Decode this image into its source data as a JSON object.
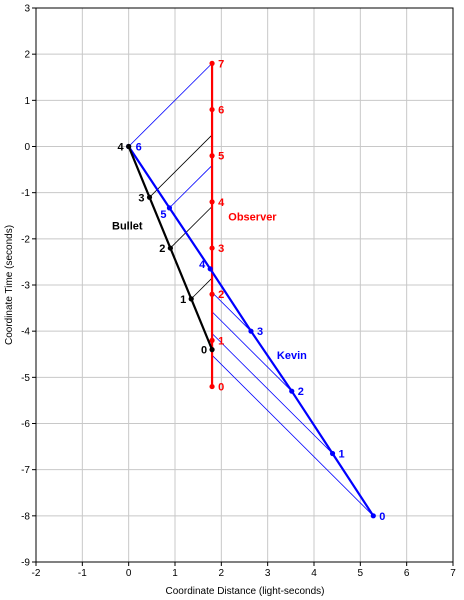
{
  "chart_data": {
    "type": "line",
    "xlabel": "Coordinate Distance (light-seconds)",
    "ylabel": "Coordinate Time (seconds)",
    "xlim": [
      -2,
      7
    ],
    "ylim": [
      -9,
      3
    ],
    "xticks": [
      "-2",
      "-1",
      "0",
      "1",
      "2",
      "3",
      "4",
      "5",
      "6",
      "7"
    ],
    "yticks": [
      "3",
      "2",
      "1",
      "0",
      "-1",
      "-2",
      "-3",
      "-4",
      "-5",
      "-6",
      "-7",
      "-8",
      "-9"
    ],
    "grid": true,
    "series": [
      {
        "name": "Observer",
        "color": "#ff0000",
        "points": [
          {
            "x": 1.8,
            "y": -5.2,
            "label": "0"
          },
          {
            "x": 1.8,
            "y": -4.2,
            "label": "1"
          },
          {
            "x": 1.8,
            "y": -3.2,
            "label": "2"
          },
          {
            "x": 1.8,
            "y": -2.2,
            "label": "3"
          },
          {
            "x": 1.8,
            "y": -1.2,
            "label": "4"
          },
          {
            "x": 1.8,
            "y": -0.2,
            "label": "5"
          },
          {
            "x": 1.8,
            "y": 0.8,
            "label": "6"
          },
          {
            "x": 1.8,
            "y": 1.8,
            "label": "7"
          }
        ]
      },
      {
        "name": "Kevin",
        "color": "#0000ff",
        "points": [
          {
            "x": 5.28,
            "y": -8.0,
            "label": "0"
          },
          {
            "x": 4.4,
            "y": -6.65,
            "label": "1"
          },
          {
            "x": 3.52,
            "y": -5.3,
            "label": "2"
          },
          {
            "x": 2.64,
            "y": -4.0,
            "label": "3"
          },
          {
            "x": 1.76,
            "y": -2.65,
            "label": "4"
          },
          {
            "x": 0.88,
            "y": -1.33,
            "label": "5"
          },
          {
            "x": 0.0,
            "y": 0.0,
            "label": "6"
          }
        ]
      },
      {
        "name": "Bullet",
        "color": "#000000",
        "points": [
          {
            "x": 1.8,
            "y": -4.4,
            "label": "0"
          },
          {
            "x": 1.35,
            "y": -3.3,
            "label": "1"
          },
          {
            "x": 0.9,
            "y": -2.2,
            "label": "2"
          },
          {
            "x": 0.45,
            "y": -1.1,
            "label": "3"
          },
          {
            "x": 0.0,
            "y": 0.0,
            "label": "4"
          }
        ]
      }
    ],
    "signal_lines": [
      {
        "from": [
          5.28,
          -8.0
        ],
        "to": [
          1.8,
          -4.52
        ],
        "color": "#0000ff"
      },
      {
        "from": [
          4.4,
          -6.65
        ],
        "to": [
          1.8,
          -4.05
        ],
        "color": "#0000ff"
      },
      {
        "from": [
          3.52,
          -5.3
        ],
        "to": [
          1.8,
          -3.58
        ],
        "color": "#0000ff"
      },
      {
        "from": [
          2.64,
          -4.0
        ],
        "to": [
          1.8,
          -3.16
        ],
        "color": "#0000ff"
      },
      {
        "from": [
          0.88,
          -1.33
        ],
        "to": [
          1.8,
          -0.41
        ],
        "color": "#0000ff"
      },
      {
        "from": [
          0.0,
          0.0
        ],
        "to": [
          1.8,
          1.8
        ],
        "color": "#0000ff"
      },
      {
        "from": [
          1.35,
          -3.3
        ],
        "to": [
          1.8,
          -2.85
        ],
        "color": "#000000"
      },
      {
        "from": [
          0.9,
          -2.2
        ],
        "to": [
          1.8,
          -1.3
        ],
        "color": "#000000"
      },
      {
        "from": [
          0.45,
          -1.1
        ],
        "to": [
          1.8,
          0.25
        ],
        "color": "#000000"
      }
    ]
  }
}
